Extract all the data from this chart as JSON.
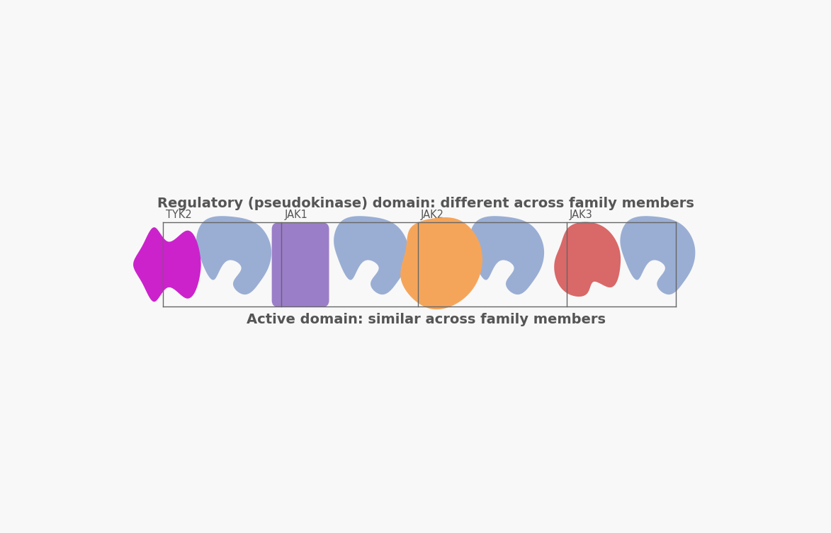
{
  "background_color": "#f8f8f8",
  "top_label": "Regulatory (pseudokinase) domain: different across family members",
  "bottom_label": "Active domain: similar across family members",
  "label_fontsize": 14,
  "kinase_label_fontsize": 10.5,
  "kinases": [
    "TYK2",
    "JAK1",
    "JAK2",
    "JAK3"
  ],
  "reg_colors": [
    "#cc22cc",
    "#9b7ec8",
    "#f5a55a",
    "#d96868"
  ],
  "active_color": "#9aaed4",
  "label_color": "#555555",
  "box_color": "#666666",
  "fig_width": 11.73,
  "fig_height": 7.53
}
